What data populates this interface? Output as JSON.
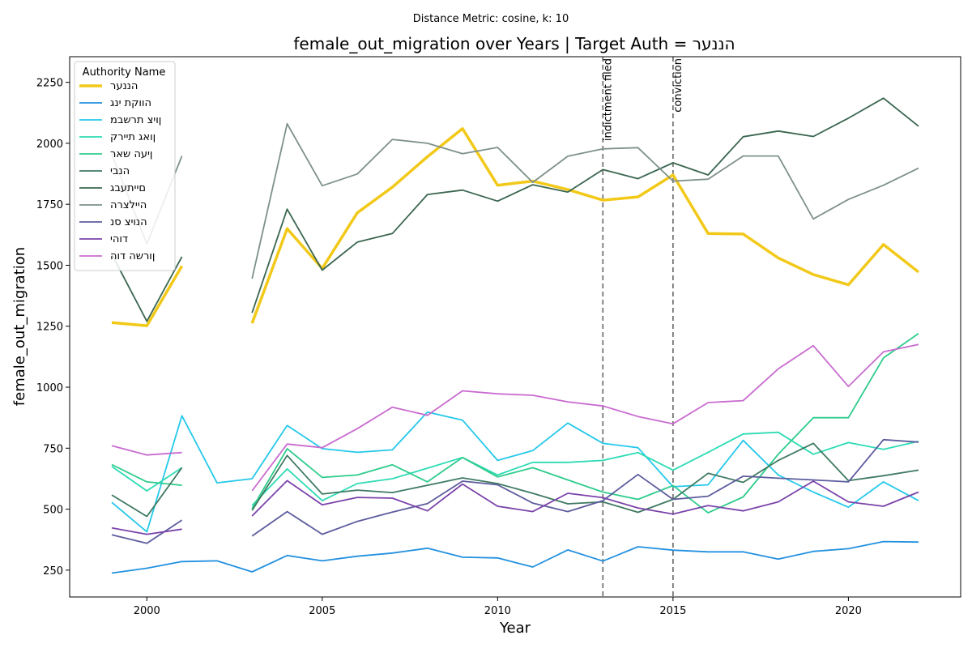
{
  "chart_data": {
    "type": "line",
    "subtitle": "Distance Metric: cosine, k: 10",
    "title": "female_out_migration over Years | Target Auth = הננער",
    "xlabel": "Year",
    "ylabel": "female_out_migration",
    "xlim": [
      1997.8,
      2023.2
    ],
    "ylim": [
      140,
      2355
    ],
    "xticks": [
      2000,
      2005,
      2010,
      2015,
      2020
    ],
    "yticks": [
      250,
      500,
      750,
      1000,
      1250,
      1500,
      1750,
      2000,
      2250
    ],
    "grid": false,
    "legend": {
      "title": "Authority Name",
      "placement": "top-left"
    },
    "vlines": [
      {
        "x": 2013,
        "label": "indictment filed"
      },
      {
        "x": 2015,
        "label": "conviction"
      }
    ],
    "x": [
      1999,
      2000,
      2001,
      2002,
      2003,
      2004,
      2005,
      2006,
      2007,
      2008,
      2009,
      2010,
      2011,
      2012,
      2013,
      2014,
      2015,
      2016,
      2017,
      2018,
      2019,
      2020,
      2021,
      2022
    ],
    "series": [
      {
        "name": "הננער",
        "color": "#f2c919",
        "width": 3.5,
        "values": [
          1265,
          1252,
          1497,
          null,
          1262,
          1650,
          1487,
          1715,
          1820,
          1945,
          2060,
          1828,
          1845,
          1810,
          1767,
          1780,
          1870,
          1630,
          1628,
          1530,
          1462,
          1420,
          1585,
          1472
        ]
      },
      {
        "name": "הווקת ינג",
        "color": "#2391e0",
        "width": 1.8,
        "values": [
          238,
          258,
          285,
          288,
          243,
          310,
          288,
          307,
          320,
          340,
          303,
          300,
          263,
          333,
          287,
          346,
          332,
          325,
          325,
          295,
          327,
          338,
          367,
          365
        ]
      },
      {
        "name": "ןויצ תרשבמ",
        "color": "#25c8ea",
        "width": 1.8,
        "values": [
          528,
          407,
          883,
          608,
          625,
          843,
          748,
          733,
          743,
          898,
          865,
          700,
          740,
          853,
          770,
          752,
          592,
          600,
          782,
          640,
          570,
          508,
          612,
          535
        ]
      },
      {
        "name": "ןואג תיירק",
        "color": "#2ddbb5",
        "width": 1.8,
        "values": [
          675,
          575,
          670,
          null,
          515,
          665,
          535,
          605,
          625,
          668,
          712,
          640,
          692,
          692,
          700,
          732,
          660,
          733,
          808,
          815,
          725,
          773,
          745,
          778
        ]
      },
      {
        "name": "ןיעה שאר",
        "color": "#2ecc8c",
        "width": 1.8,
        "values": [
          683,
          612,
          598,
          null,
          502,
          748,
          630,
          640,
          682,
          612,
          712,
          632,
          670,
          620,
          570,
          540,
          597,
          485,
          550,
          725,
          875,
          875,
          1120,
          1220
        ]
      },
      {
        "name": "הנבי",
        "color": "#3f7a62",
        "width": 1.8,
        "values": [
          558,
          470,
          670,
          null,
          495,
          720,
          562,
          578,
          568,
          598,
          628,
          605,
          565,
          522,
          530,
          487,
          540,
          647,
          610,
          700,
          770,
          617,
          637,
          660
        ]
      },
      {
        "name": "םייתעבג",
        "color": "#3a6650",
        "width": 1.8,
        "values": [
          1545,
          1270,
          1535,
          null,
          1305,
          1730,
          1480,
          1595,
          1630,
          1790,
          1808,
          1763,
          1830,
          1800,
          1892,
          1855,
          1920,
          1870,
          2027,
          2050,
          2028,
          2103,
          2185,
          2070
        ]
      },
      {
        "name": "היילצרה",
        "color": "#7e918a",
        "width": 1.8,
        "values": [
          1955,
          1588,
          1948,
          null,
          1445,
          2080,
          1826,
          1874,
          2016,
          2000,
          1957,
          1983,
          1840,
          1947,
          1977,
          1982,
          1845,
          1853,
          1948,
          1948,
          1690,
          1770,
          1828,
          1898
        ]
      },
      {
        "name": "הנויצ סנ",
        "color": "#5d5c9e",
        "width": 1.8,
        "values": [
          395,
          360,
          455,
          null,
          390,
          490,
          397,
          450,
          488,
          523,
          615,
          600,
          525,
          490,
          535,
          642,
          540,
          553,
          635,
          627,
          620,
          612,
          785,
          775
        ]
      },
      {
        "name": "דוהי",
        "color": "#7a43aa",
        "width": 1.8,
        "values": [
          423,
          397,
          418,
          null,
          472,
          617,
          518,
          548,
          545,
          493,
          603,
          512,
          490,
          565,
          547,
          505,
          480,
          515,
          493,
          530,
          615,
          530,
          512,
          570
        ]
      },
      {
        "name": "ןורשה דוה",
        "color": "#c96bd0",
        "width": 1.8,
        "values": [
          760,
          722,
          732,
          null,
          575,
          767,
          752,
          830,
          918,
          885,
          985,
          973,
          967,
          940,
          923,
          880,
          850,
          937,
          945,
          1075,
          1170,
          1003,
          1145,
          1175
        ]
      }
    ]
  }
}
